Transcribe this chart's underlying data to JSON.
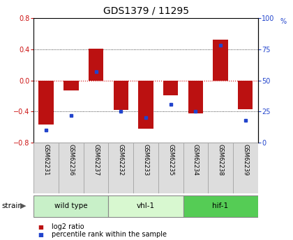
{
  "title": "GDS1379 / 11295",
  "samples": [
    "GSM62231",
    "GSM62236",
    "GSM62237",
    "GSM62232",
    "GSM62233",
    "GSM62235",
    "GSM62234",
    "GSM62238",
    "GSM62239"
  ],
  "log2_ratio": [
    -0.57,
    -0.13,
    0.41,
    -0.38,
    -0.62,
    -0.19,
    -0.42,
    0.52,
    -0.37
  ],
  "percentile_rank": [
    10,
    22,
    57,
    25,
    20,
    31,
    25,
    78,
    18
  ],
  "groups": [
    {
      "label": "wild type",
      "start": 0,
      "end": 3,
      "color": "#c8f0c8"
    },
    {
      "label": "vhl-1",
      "start": 3,
      "end": 6,
      "color": "#d8f8d0"
    },
    {
      "label": "hif-1",
      "start": 6,
      "end": 9,
      "color": "#55cc55"
    }
  ],
  "ylim": [
    -0.8,
    0.8
  ],
  "yticks_left": [
    -0.8,
    -0.4,
    0.0,
    0.4,
    0.8
  ],
  "yticks_right": [
    0,
    25,
    50,
    75,
    100
  ],
  "bar_color": "#bb1111",
  "dot_color": "#2244cc",
  "zero_line_color": "#cc0000",
  "grid_color": "#111111",
  "bg_color": "#ffffff",
  "plot_bg_color": "#ffffff",
  "tick_label_fontsize": 7,
  "title_fontsize": 10,
  "legend_fontsize": 7,
  "bar_width": 0.6,
  "sample_box_color": "#dddddd",
  "sample_box_edge": "#aaaaaa"
}
